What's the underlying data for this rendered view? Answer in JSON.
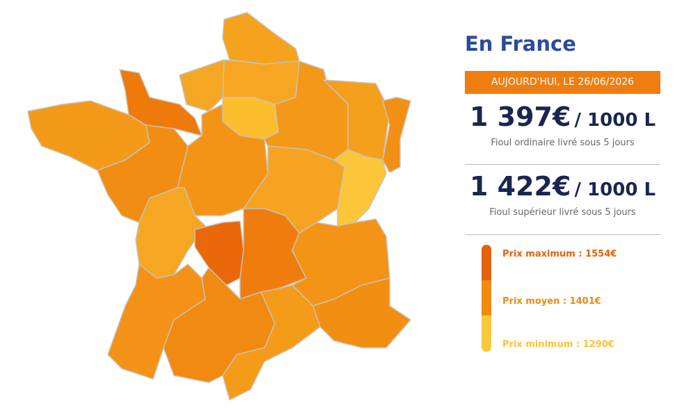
{
  "header": {
    "title": "En France",
    "date": "AUJOURD'HUI, LE 26/06/2026"
  },
  "prices": [
    {
      "amount": "1 397€",
      "unit": "/ 1000 L",
      "description": "Fioul ordinaire livré sous 5 jours"
    },
    {
      "amount": "1 422€",
      "unit": "/ 1000 L",
      "description": "Fioul supérieur livré sous 5 jours"
    }
  ],
  "legend": [
    "Prix maximum : 1554€",
    "Prix moyen : 1401€",
    "Prix minimum : 1290€"
  ]
}
